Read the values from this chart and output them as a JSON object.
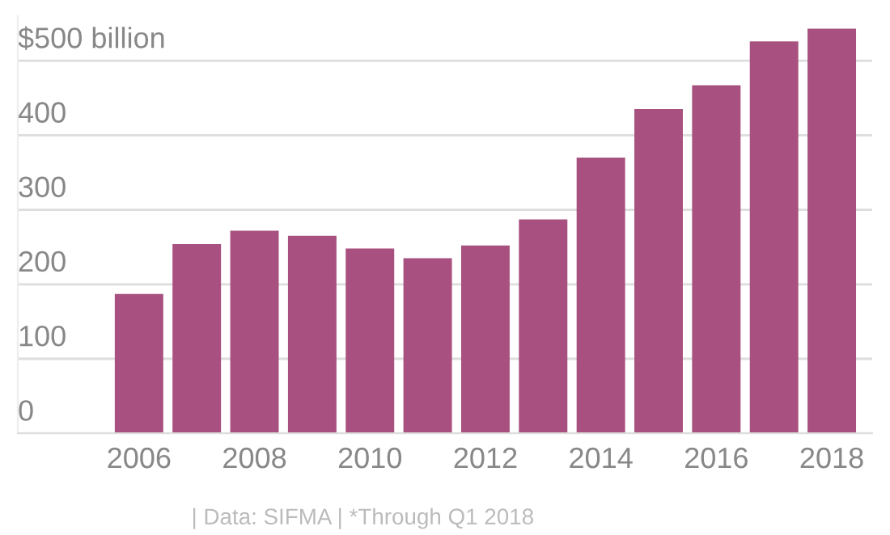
{
  "chart_data": {
    "type": "bar",
    "x": [
      2006,
      2007,
      2008,
      2009,
      2010,
      2011,
      2012,
      2013,
      2014,
      2015,
      2016,
      2017,
      2018
    ],
    "values": [
      187,
      254,
      272,
      265,
      248,
      235,
      252,
      287,
      370,
      435,
      467,
      526,
      543
    ],
    "color": "#a8507f",
    "xlim": [
      2003.9,
      2018.7
    ],
    "xticks": [
      2006,
      2008,
      2010,
      2012,
      2014,
      2016,
      2018
    ],
    "ylim": [
      0,
      560
    ],
    "yticks": [
      0,
      100,
      200,
      300,
      400,
      {
        "value": 500,
        "label": "$500 billion"
      }
    ],
    "grid": "y",
    "legend": false,
    "annotations": [
      "| Data: SIFMA | *Through Q1 2018"
    ]
  }
}
